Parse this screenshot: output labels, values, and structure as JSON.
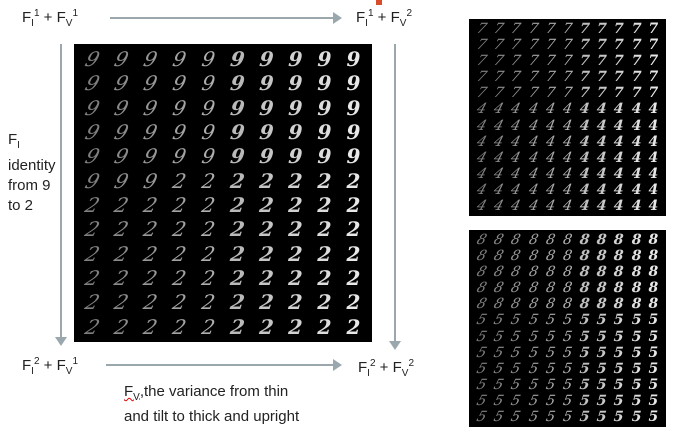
{
  "labels": {
    "top_left": {
      "base": "F",
      "sub1": "I",
      "sup1": "1",
      "plus": " + F",
      "sub2": "V",
      "sup2": "1"
    },
    "top_right": {
      "base": "F",
      "sub1": "I",
      "sup1": "1",
      "plus": " + F",
      "sub2": "V",
      "sup2": "2"
    },
    "bottom_left": {
      "base": "F",
      "sub1": "I",
      "sup1": "2",
      "plus": " + F",
      "sub2": "V",
      "sup2": "1"
    },
    "bottom_right": {
      "base": "F",
      "sub1": "I",
      "sup1": "2",
      "plus": " + F",
      "sub2": "V",
      "sup2": "2"
    },
    "identity": {
      "base": "F",
      "sub": "I",
      "line1": "identity",
      "line2": "from 9",
      "line3": "to 2"
    },
    "variance": {
      "base": "F",
      "sub": "V",
      "line1_rest": ",the variance from thin",
      "line2": "and tilt to thick and upright"
    }
  },
  "grids": {
    "main": {
      "rows": [
        "9999999999",
        "9999999999",
        "9999999999",
        "9999999999",
        "9999999999",
        "9992222222",
        "2222222222",
        "2222222222",
        "2222222222",
        "2222222222",
        "2222222222",
        "2222222222"
      ]
    },
    "top_right": {
      "rows": [
        "77777777777",
        "77777777777",
        "77777777777",
        "77777777777",
        "77777777777",
        "44444444444",
        "44444444444",
        "44444444444",
        "44444444444",
        "44444444444",
        "44444444444",
        "44444444444"
      ]
    },
    "bottom_right": {
      "rows": [
        "88888888888",
        "88888888888",
        "88888888888",
        "88888888888",
        "88888888888",
        "55555555555",
        "55555555555",
        "55555555555",
        "55555555555",
        "55555555555",
        "55555555555",
        "55555555555"
      ]
    }
  },
  "colors": {
    "arrow": "#9aa8ad",
    "grid_bg": "#000000",
    "digit": "#e8e8e8",
    "accent": "#d94c2a"
  }
}
